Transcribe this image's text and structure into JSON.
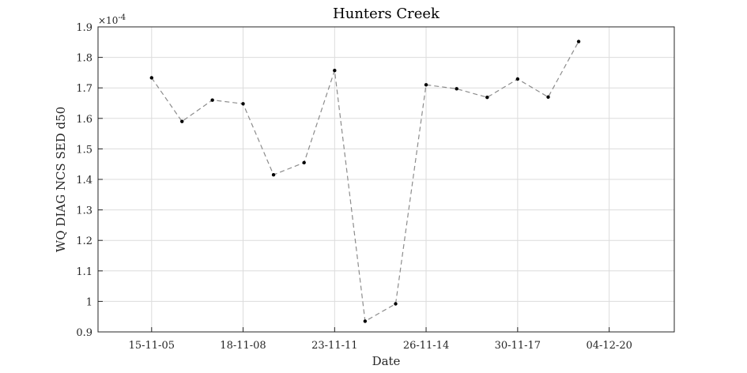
{
  "chart_data": {
    "type": "line",
    "title": "Hunters Creek",
    "xlabel": "Date",
    "ylabel": "WQ DIAG NCS SED d50",
    "y_multiplier_label": "×10",
    "y_multiplier_exponent": "-4",
    "xlim_days_label_range": [
      "15-11-05",
      "04-12-20"
    ],
    "xticks": [
      "15-11-05",
      "18-11-08",
      "23-11-11",
      "26-11-14",
      "30-11-17",
      "04-12-20"
    ],
    "yticks": [
      "0.9",
      "1",
      "1.1",
      "1.2",
      "1.3",
      "1.4",
      "1.5",
      "1.6",
      "1.7",
      "1.8",
      "1.9"
    ],
    "ylim": [
      0.9,
      1.9
    ],
    "grid": true,
    "line_color": "#8c8c8c",
    "marker_color": "#000000",
    "series": [
      {
        "x": [
          "2005-11-15",
          "2006-11-15",
          "2007-11-15",
          "2008-11-18",
          "2009-11-19",
          "2010-11-21",
          "2011-11-23",
          "2012-11-23",
          "2013-11-25",
          "2014-11-26",
          "2015-11-28",
          "2016-11-29",
          "2017-11-30",
          "2018-12-02",
          "2019-12-03",
          "2020-12-04"
        ],
        "y": [
          1.733,
          1.59,
          1.66,
          1.648,
          1.415,
          1.455,
          1.757,
          0.935,
          0.992,
          1.71,
          1.697,
          1.669,
          1.729,
          1.67,
          1.852,
          null
        ]
      }
    ]
  }
}
